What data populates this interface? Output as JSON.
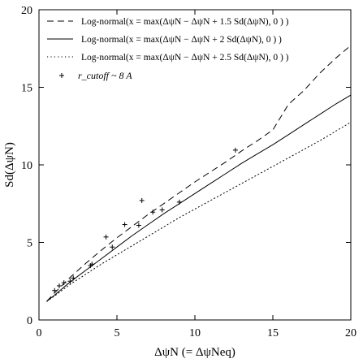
{
  "chart_data": {
    "type": "line",
    "title": "",
    "xlabel": "ΔψN (= ΔψNeq)",
    "ylabel": "Sd(ΔψN)",
    "xlim": [
      0,
      20
    ],
    "ylim": [
      0,
      20
    ],
    "x_ticks": [
      0,
      5,
      10,
      15,
      20
    ],
    "y_ticks": [
      0,
      5,
      10,
      15,
      20
    ],
    "grid": false,
    "legend_position": "top-left",
    "series": [
      {
        "name": "Log-normal(x = max(ΔψN − ΔψN + 1.5 Sd(ΔψN), 0 ) )",
        "style": "dashed",
        "x": [
          0.5,
          1,
          2,
          3,
          4,
          5,
          6,
          7,
          8,
          9,
          10,
          11,
          12,
          13,
          14,
          15,
          16,
          17,
          18,
          19,
          20
        ],
        "y": [
          1.2,
          1.75,
          2.75,
          3.65,
          4.5,
          5.3,
          6.05,
          6.8,
          7.5,
          8.2,
          8.9,
          9.55,
          10.2,
          10.9,
          11.55,
          12.25,
          13.9,
          14.8,
          15.9,
          16.85,
          17.7
        ]
      },
      {
        "name": "Log-normal(x = max(ΔψN − ΔψN + 2   Sd(ΔψN), 0 ) )",
        "style": "solid",
        "x": [
          0.5,
          1,
          2,
          3,
          4,
          5,
          6,
          7,
          8,
          9,
          10,
          11,
          12,
          13,
          14,
          15,
          16,
          17,
          18,
          19,
          20
        ],
        "y": [
          1.2,
          1.6,
          2.45,
          3.2,
          3.95,
          4.7,
          5.45,
          6.15,
          6.85,
          7.5,
          8.15,
          8.8,
          9.45,
          10.1,
          10.7,
          11.3,
          11.95,
          12.6,
          13.25,
          13.9,
          14.5
        ]
      },
      {
        "name": "Log-normal(x = max(ΔψN − ΔψN + 2.5 Sd(ΔψN), 0 ) )",
        "style": "dotted",
        "x": [
          0.5,
          1,
          2,
          3,
          4,
          5,
          6,
          7,
          8,
          9,
          10,
          11,
          12,
          13,
          14,
          15,
          16,
          17,
          18,
          19,
          20
        ],
        "y": [
          1.2,
          1.55,
          2.3,
          2.95,
          3.6,
          4.2,
          4.8,
          5.4,
          6.0,
          6.6,
          7.15,
          7.7,
          8.25,
          8.8,
          9.35,
          9.9,
          10.45,
          11.0,
          11.55,
          12.15,
          12.75
        ]
      },
      {
        "name": "r_cutoff ~ 8 A",
        "style": "markers",
        "marker": "+",
        "x": [
          1.0,
          1.3,
          1.6,
          2.0,
          2.2,
          3.3,
          3.4,
          4.3,
          4.7,
          5.5,
          6.4,
          6.6,
          7.3,
          7.9,
          9.0,
          12.6
        ],
        "y": [
          1.9,
          2.2,
          2.4,
          2.5,
          2.7,
          3.5,
          3.6,
          5.35,
          4.7,
          6.15,
          6.1,
          7.7,
          6.95,
          7.1,
          7.6,
          10.95
        ]
      }
    ]
  }
}
